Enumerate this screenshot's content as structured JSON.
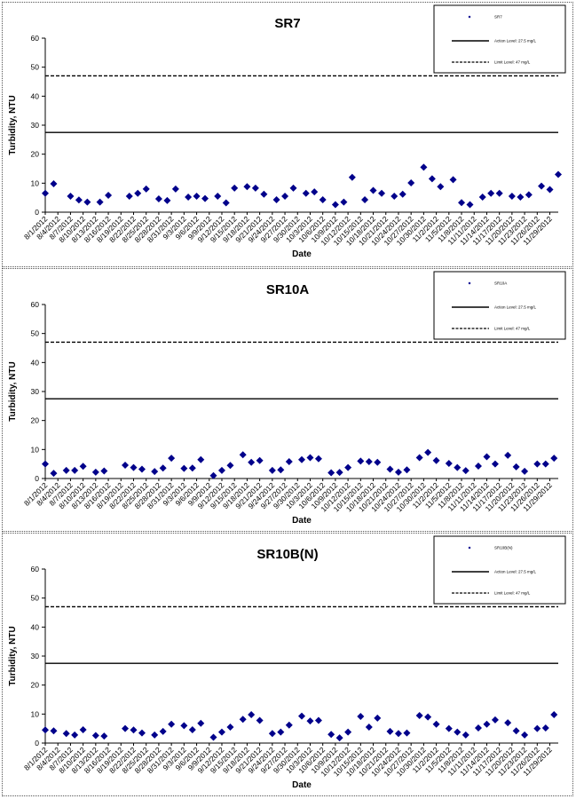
{
  "chart_data": [
    {
      "type": "scatter",
      "title": "SR7",
      "xlabel": "Date",
      "ylabel": "Turbidity, NTU",
      "ylim": [
        0,
        60
      ],
      "yticks": [
        0,
        10,
        20,
        30,
        40,
        50,
        60
      ],
      "xticks": [
        "8/1/2012",
        "8/4/2012",
        "8/7/2012",
        "8/10/2012",
        "8/13/2012",
        "8/16/2012",
        "8/19/2012",
        "8/22/2012",
        "8/25/2012",
        "8/28/2012",
        "8/31/2012",
        "9/3/2012",
        "9/6/2012",
        "9/9/2012",
        "9/12/2012",
        "9/15/2012",
        "9/18/2012",
        "9/21/2012",
        "9/24/2012",
        "9/27/2012",
        "9/30/2012",
        "10/3/2012",
        "10/6/2012",
        "10/9/2012",
        "10/12/2012",
        "10/15/2012",
        "10/18/2012",
        "10/21/2012",
        "10/24/2012",
        "10/27/2012",
        "10/30/2012",
        "11/2/2012",
        "11/5/2012",
        "11/8/2012",
        "11/11/2012",
        "11/14/2012",
        "11/17/2012",
        "11/20/2012",
        "11/23/2012",
        "11/26/2012",
        "11/29/2012"
      ],
      "legend": {
        "position": "top-right",
        "entries": [
          "SR7",
          "Action Level: 27.5 mg/L",
          "Limit Level: 47 mg/L"
        ]
      },
      "reference_lines": [
        {
          "label": "Action Level: 27.5 mg/L",
          "y": 27.5,
          "style": "solid"
        },
        {
          "label": "Limit Level: 47 mg/L",
          "y": 47,
          "style": "dashed"
        }
      ],
      "series": [
        {
          "name": "SR7",
          "color": "#00008B",
          "x": [
            "8/1/2012",
            "8/3/2012",
            "8/7/2012",
            "8/9/2012",
            "8/11/2012",
            "8/14/2012",
            "8/16/2012",
            "8/21/2012",
            "8/23/2012",
            "8/25/2012",
            "8/28/2012",
            "8/30/2012",
            "9/1/2012",
            "9/4/2012",
            "9/6/2012",
            "9/8/2012",
            "9/11/2012",
            "9/13/2012",
            "9/15/2012",
            "9/18/2012",
            "9/20/2012",
            "9/22/2012",
            "9/25/2012",
            "9/27/2012",
            "9/29/2012",
            "10/2/2012",
            "10/4/2012",
            "10/6/2012",
            "10/9/2012",
            "10/11/2012",
            "10/13/2012",
            "10/16/2012",
            "10/18/2012",
            "10/20/2012",
            "10/23/2012",
            "10/25/2012",
            "10/27/2012",
            "10/30/2012",
            "11/1/2012",
            "11/3/2012",
            "11/6/2012",
            "11/8/2012",
            "11/10/2012",
            "11/13/2012",
            "11/15/2012",
            "11/17/2012",
            "11/20/2012",
            "11/22/2012",
            "11/24/2012",
            "11/27/2012",
            "11/29/2012",
            "12/1/2012"
          ],
          "y": [
            6.5,
            9.8,
            5.5,
            4.2,
            3.5,
            3.5,
            5.8,
            5.5,
            6.5,
            8.0,
            4.6,
            4.0,
            8.0,
            5.2,
            5.5,
            4.7,
            5.5,
            3.2,
            8.3,
            8.8,
            8.3,
            6.2,
            4.3,
            5.5,
            8.3,
            6.5,
            7.0,
            4.3,
            2.6,
            3.5,
            12.0,
            4.3,
            7.5,
            6.5,
            5.5,
            6.2,
            10.1,
            15.5,
            11.5,
            8.8,
            11.2,
            3.3,
            2.6,
            5.2,
            6.5,
            6.5,
            5.5,
            5.2,
            6.0,
            9.0,
            7.8,
            13.0
          ]
        }
      ]
    },
    {
      "type": "scatter",
      "title": "SR10A",
      "xlabel": "Date",
      "ylabel": "Turbidity, NTU",
      "ylim": [
        0,
        60
      ],
      "yticks": [
        0,
        10,
        20,
        30,
        40,
        50,
        60
      ],
      "xticks": [
        "8/1/2012",
        "8/4/2012",
        "8/7/2012",
        "8/10/2012",
        "8/13/2012",
        "8/16/2012",
        "8/19/2012",
        "8/22/2012",
        "8/25/2012",
        "8/28/2012",
        "8/31/2012",
        "9/3/2012",
        "9/6/2012",
        "9/9/2012",
        "9/12/2012",
        "9/15/2012",
        "9/18/2012",
        "9/21/2012",
        "9/24/2012",
        "9/27/2012",
        "9/30/2012",
        "10/3/2012",
        "10/6/2012",
        "10/9/2012",
        "10/12/2012",
        "10/15/2012",
        "10/18/2012",
        "10/21/2012",
        "10/24/2012",
        "10/27/2012",
        "10/30/2012",
        "11/2/2012",
        "11/5/2012",
        "11/8/2012",
        "11/11/2012",
        "11/14/2012",
        "11/17/2012",
        "11/20/2012",
        "11/23/2012",
        "11/26/2012",
        "11/29/2012"
      ],
      "legend": {
        "position": "top-right",
        "entries": [
          "SR10A",
          "Action Level: 27.5 mg/L",
          "Limit Level: 47 mg/L"
        ]
      },
      "reference_lines": [
        {
          "label": "Action Level: 27.5 mg/L",
          "y": 27.5,
          "style": "solid"
        },
        {
          "label": "Limit Level: 47 mg/L",
          "y": 47,
          "style": "dashed"
        }
      ],
      "series": [
        {
          "name": "SR10A",
          "color": "#00008B",
          "x": [
            "8/1/2012",
            "8/3/2012",
            "8/6/2012",
            "8/8/2012",
            "8/10/2012",
            "8/13/2012",
            "8/15/2012",
            "8/20/2012",
            "8/22/2012",
            "8/24/2012",
            "8/27/2012",
            "8/29/2012",
            "8/31/2012",
            "9/3/2012",
            "9/5/2012",
            "9/7/2012",
            "9/10/2012",
            "9/12/2012",
            "9/14/2012",
            "9/17/2012",
            "9/19/2012",
            "9/21/2012",
            "9/24/2012",
            "9/26/2012",
            "9/28/2012",
            "10/1/2012",
            "10/3/2012",
            "10/5/2012",
            "10/8/2012",
            "10/10/2012",
            "10/12/2012",
            "10/15/2012",
            "10/17/2012",
            "10/19/2012",
            "10/22/2012",
            "10/24/2012",
            "10/26/2012",
            "10/29/2012",
            "10/31/2012",
            "11/2/2012",
            "11/5/2012",
            "11/7/2012",
            "11/9/2012",
            "11/12/2012",
            "11/14/2012",
            "11/16/2012",
            "11/19/2012",
            "11/21/2012",
            "11/23/2012",
            "11/26/2012",
            "11/28/2012",
            "11/30/2012"
          ],
          "y": [
            5.0,
            1.8,
            2.8,
            2.8,
            4.2,
            2.2,
            2.6,
            4.6,
            3.8,
            3.2,
            2.4,
            3.6,
            7.0,
            3.5,
            3.6,
            6.5,
            1.0,
            2.8,
            4.5,
            8.2,
            5.6,
            6.2,
            2.8,
            3.0,
            5.8,
            6.5,
            7.2,
            6.8,
            2.0,
            2.1,
            3.8,
            6.0,
            5.8,
            5.6,
            3.2,
            2.2,
            3.0,
            7.2,
            9.0,
            6.2,
            5.2,
            3.8,
            2.7,
            4.3,
            7.5,
            5.0,
            8.0,
            4.0,
            2.5,
            5.0,
            5.0,
            7.0
          ]
        }
      ]
    },
    {
      "type": "scatter",
      "title": "SR10B(N)",
      "xlabel": "Date",
      "ylabel": "Turbidity, NTU",
      "ylim": [
        0,
        60
      ],
      "yticks": [
        0,
        10,
        20,
        30,
        40,
        50,
        60
      ],
      "xticks": [
        "8/1/2012",
        "8/4/2012",
        "8/7/2012",
        "8/10/2012",
        "8/13/2012",
        "8/16/2012",
        "8/19/2012",
        "8/22/2012",
        "8/25/2012",
        "8/28/2012",
        "8/31/2012",
        "9/3/2012",
        "9/6/2012",
        "9/9/2012",
        "9/12/2012",
        "9/15/2012",
        "9/18/2012",
        "9/21/2012",
        "9/24/2012",
        "9/27/2012",
        "9/30/2012",
        "10/3/2012",
        "10/6/2012",
        "10/9/2012",
        "10/12/2012",
        "10/15/2012",
        "10/18/2012",
        "10/21/2012",
        "10/24/2012",
        "10/27/2012",
        "10/30/2012",
        "11/2/2012",
        "11/5/2012",
        "11/8/2012",
        "11/11/2012",
        "11/14/2012",
        "11/17/2012",
        "11/20/2012",
        "11/23/2012",
        "11/26/2012",
        "11/29/2012"
      ],
      "legend": {
        "position": "top-right",
        "entries": [
          "SR10B(N)",
          "Action Level: 27.5 mg/L",
          "Limit Level: 47 mg/L"
        ]
      },
      "reference_lines": [
        {
          "label": "Action Level: 27.5 mg/L",
          "y": 27.5,
          "style": "solid"
        },
        {
          "label": "Limit Level: 47 mg/L",
          "y": 47,
          "style": "dashed"
        }
      ],
      "series": [
        {
          "name": "SR10B(N)",
          "color": "#00008B",
          "x": [
            "8/1/2012",
            "8/3/2012",
            "8/6/2012",
            "8/8/2012",
            "8/10/2012",
            "8/13/2012",
            "8/15/2012",
            "8/20/2012",
            "8/22/2012",
            "8/24/2012",
            "8/27/2012",
            "8/29/2012",
            "8/31/2012",
            "9/3/2012",
            "9/5/2012",
            "9/7/2012",
            "9/10/2012",
            "9/12/2012",
            "9/14/2012",
            "9/17/2012",
            "9/19/2012",
            "9/21/2012",
            "9/24/2012",
            "9/26/2012",
            "9/28/2012",
            "10/1/2012",
            "10/3/2012",
            "10/5/2012",
            "10/8/2012",
            "10/10/2012",
            "10/12/2012",
            "10/15/2012",
            "10/17/2012",
            "10/19/2012",
            "10/22/2012",
            "10/24/2012",
            "10/26/2012",
            "10/29/2012",
            "10/31/2012",
            "11/2/2012",
            "11/5/2012",
            "11/7/2012",
            "11/9/2012",
            "11/12/2012",
            "11/14/2012",
            "11/16/2012",
            "11/19/2012",
            "11/21/2012",
            "11/23/2012",
            "11/26/2012",
            "11/28/2012",
            "11/30/2012"
          ],
          "y": [
            4.5,
            4.2,
            3.3,
            2.8,
            4.6,
            2.6,
            2.4,
            5.0,
            4.5,
            3.5,
            2.8,
            4.0,
            6.5,
            6.0,
            4.6,
            6.8,
            2.0,
            3.8,
            5.5,
            8.2,
            9.8,
            7.8,
            3.3,
            3.8,
            6.2,
            9.3,
            7.6,
            7.8,
            3.0,
            1.8,
            3.8,
            9.2,
            5.5,
            8.6,
            4.0,
            3.3,
            3.5,
            9.5,
            9.0,
            6.5,
            5.0,
            3.8,
            2.8,
            5.2,
            6.5,
            8.0,
            7.0,
            4.2,
            2.8,
            5.0,
            5.2,
            9.8
          ]
        }
      ]
    }
  ]
}
